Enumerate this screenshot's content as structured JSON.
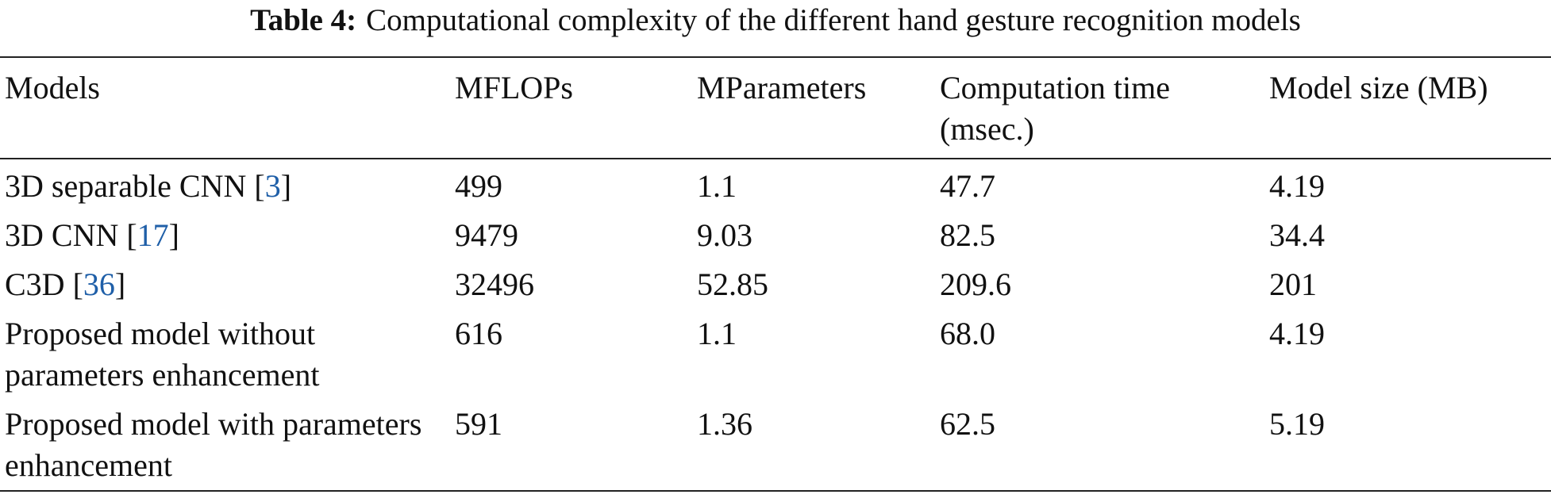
{
  "table": {
    "label": "Table 4:",
    "caption": "Computational complexity of the different hand gesture recognition models",
    "columns": [
      "Models",
      "MFLOPs",
      "MParameters",
      "Computation time (msec.)",
      "Model size (MB)"
    ],
    "rows": [
      [
        {
          "text": "3D separable CNN [",
          "ref": "3",
          "after": "]"
        },
        "499",
        "1.1",
        "47.7",
        "4.19"
      ],
      [
        {
          "text": "3D CNN [",
          "ref": "17",
          "after": "]"
        },
        "9479",
        "9.03",
        "82.5",
        "34.4"
      ],
      [
        {
          "text": "C3D [",
          "ref": "36",
          "after": "]"
        },
        "32496",
        "52.85",
        "209.6",
        "201"
      ],
      [
        {
          "text": "Proposed model without parameters enhancement"
        },
        "616",
        "1.1",
        "68.0",
        "4.19"
      ],
      [
        {
          "text": "Proposed model with parameters enhancement"
        },
        "591",
        "1.36",
        "62.5",
        "5.19"
      ]
    ]
  }
}
